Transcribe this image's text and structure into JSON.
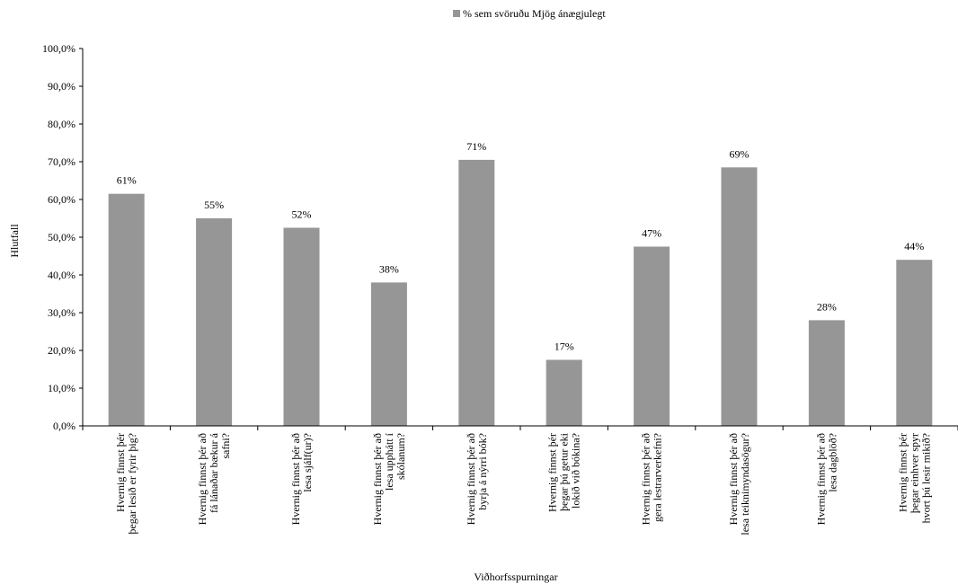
{
  "chart_data": {
    "type": "bar",
    "title": "",
    "xlabel": "Viðhorfsspurningar",
    "ylabel": "Hlutfall",
    "ylim": [
      0,
      100
    ],
    "y_ticks": [
      "0,0%",
      "10,0%",
      "20,0%",
      "30,0%",
      "40,0%",
      "50,0%",
      "60,0%",
      "70,0%",
      "80,0%",
      "90,0%",
      "100,0%"
    ],
    "legend_position": "top-center",
    "bar_color": "#969696",
    "series": [
      {
        "name": "% sem svöruðu Mjög ánægjulegt",
        "values": [
          61.5,
          55,
          52.5,
          38,
          70.5,
          17.5,
          47.5,
          68.5,
          28,
          44
        ],
        "labels": [
          "61%",
          "55%",
          "52%",
          "38%",
          "71%",
          "17%",
          "47%",
          "69%",
          "28%",
          "44%"
        ]
      }
    ],
    "categories": [
      [
        "Hvernig finnst þér",
        "þegar lesið er fyrir þig?"
      ],
      [
        "Hvernig finnst þér að",
        "fá lánaðar bækur á",
        "safni?"
      ],
      [
        "Hvernig finnst þér að",
        "lesa sjálf(ur)?"
      ],
      [
        "Hvernig finnst þér að",
        "lesa upphátt í",
        "skólanum?"
      ],
      [
        "Hvernig finnst þér að",
        "byrja á nýrri bók?"
      ],
      [
        "Hvernig finnst þér",
        "þegar þú getur eki",
        "lokið við bókina?"
      ],
      [
        "Hvernig finnst þér að",
        "gera lestrarverkefni?"
      ],
      [
        "Hvernig finnst þér að",
        "lesa teiknimyndasögur?"
      ],
      [
        "Hvernig finnst þér að",
        "lesa dagblöð?"
      ],
      [
        "Hvernig finnst þér",
        "þegar einhver spyr",
        "hvort þú lesir mikið?"
      ]
    ]
  }
}
